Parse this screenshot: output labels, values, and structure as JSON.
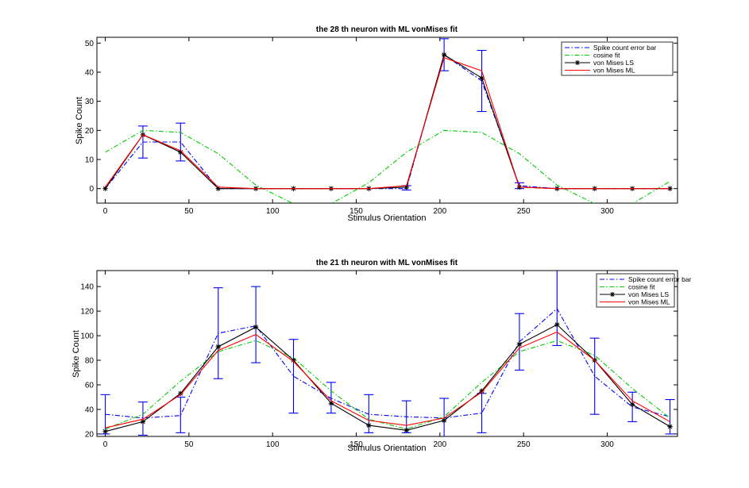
{
  "chart_data": [
    {
      "type": "line",
      "title": "the 28 th neuron with ML vonMises fit",
      "xlabel": "Stimulus Orientation",
      "ylabel": "Spike Count",
      "xlim": [
        -5,
        342
      ],
      "ylim": [
        -5,
        52
      ],
      "xticks": [
        0,
        50,
        100,
        150,
        200,
        250,
        300
      ],
      "yticks": [
        0,
        10,
        20,
        30,
        40,
        50
      ],
      "legend_position": "top-right",
      "x": [
        0,
        22.5,
        45,
        67.5,
        90,
        112.5,
        135,
        157.5,
        180,
        202.5,
        225,
        247.5,
        270,
        292.5,
        315,
        337.5
      ],
      "series": [
        {
          "name": "Spike count error bar",
          "color": "#0000ff",
          "style": "dashdot",
          "marker": "none",
          "values": [
            0,
            16,
            16,
            0,
            0,
            0,
            0,
            0,
            0,
            46,
            37,
            1,
            0,
            0,
            0,
            0
          ],
          "errorbars": [
            [
              0,
              0
            ],
            [
              10.5,
              21.5
            ],
            [
              9.5,
              22.5
            ],
            [
              0,
              0
            ],
            [
              0,
              0
            ],
            [
              0,
              0
            ],
            [
              0,
              0
            ],
            [
              0,
              0
            ],
            [
              -0.5,
              1
            ],
            [
              40.5,
              51.5
            ],
            [
              26.5,
              47.5
            ],
            [
              0,
              2
            ],
            [
              0,
              0
            ],
            [
              0,
              0
            ],
            [
              0,
              0
            ],
            [
              0,
              0
            ]
          ]
        },
        {
          "name": "cosine fit",
          "color": "#00cc00",
          "style": "dashdot",
          "marker": "none",
          "values": [
            12.5,
            20,
            19.3,
            12,
            1.2,
            -5.2,
            -5.2,
            2,
            12.5,
            20,
            19.3,
            12,
            1.2,
            -5.2,
            -5.2,
            2.5
          ]
        },
        {
          "name": "von Mises LS",
          "color": "#000000",
          "style": "solid",
          "marker": "star",
          "values": [
            0,
            18.5,
            12.5,
            0,
            0,
            0,
            0,
            0,
            0.5,
            46,
            38,
            0.5,
            0,
            0,
            0,
            0
          ]
        },
        {
          "name": "von Mises ML",
          "color": "#ff0000",
          "style": "solid",
          "marker": "none",
          "values": [
            0.5,
            18.5,
            13,
            0.5,
            0,
            0,
            0,
            0,
            1,
            45,
            40.5,
            0.5,
            0,
            0,
            0,
            0
          ]
        }
      ]
    },
    {
      "type": "line",
      "title": "the 21 th neuron with ML vonMises fit",
      "xlabel": "Stimulus Orientation",
      "ylabel": "Spike Count",
      "xlim": [
        -5,
        342
      ],
      "ylim": [
        18,
        153
      ],
      "xticks": [
        0,
        50,
        100,
        150,
        200,
        250,
        300
      ],
      "yticks": [
        20,
        40,
        60,
        80,
        100,
        120,
        140
      ],
      "legend_position": "top-right",
      "x": [
        0,
        22.5,
        45,
        67.5,
        90,
        112.5,
        135,
        157.5,
        180,
        202.5,
        225,
        247.5,
        270,
        292.5,
        315,
        337.5
      ],
      "series": [
        {
          "name": "Spike count error bar",
          "color": "#0000ff",
          "style": "dashdot",
          "marker": "none",
          "values": [
            36,
            33,
            35,
            102,
            108,
            67,
            49,
            36,
            34,
            33,
            37,
            95,
            122,
            67,
            42,
            34
          ],
          "errorbars": [
            [
              20,
              52
            ],
            [
              19,
              46
            ],
            [
              21,
              50
            ],
            [
              65,
              139
            ],
            [
              78,
              140
            ],
            [
              37,
              97
            ],
            [
              37,
              62
            ],
            [
              21,
              52
            ],
            [
              21,
              47
            ],
            [
              17,
              49
            ],
            [
              21,
              53
            ],
            [
              72,
              118
            ],
            [
              92,
              158
            ],
            [
              36,
              98
            ],
            [
              30,
              54
            ],
            [
              20,
              48
            ]
          ]
        },
        {
          "name": "cosine fit",
          "color": "#00cc00",
          "style": "dashdot",
          "marker": "none",
          "values": [
            24,
            36,
            63,
            87,
            96,
            82,
            55,
            32,
            24,
            34,
            62,
            87,
            96,
            84,
            57,
            33
          ]
        },
        {
          "name": "von Mises LS",
          "color": "#000000",
          "style": "solid",
          "marker": "star",
          "values": [
            22,
            30,
            53,
            91,
            107,
            80,
            45,
            27,
            23,
            31,
            55,
            93,
            109,
            80,
            44,
            26
          ]
        },
        {
          "name": "von Mises ML",
          "color": "#ff0000",
          "style": "solid",
          "marker": "none",
          "values": [
            25,
            32,
            52,
            88,
            101,
            79,
            47,
            31,
            27,
            33,
            54,
            90,
            103,
            80,
            47,
            30
          ]
        }
      ]
    }
  ]
}
